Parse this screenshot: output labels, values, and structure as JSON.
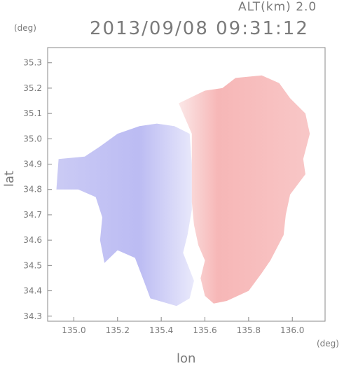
{
  "header": {
    "altitude_label": "ALT(km) 2.0",
    "datetime": "2013/09/08 09:31:12"
  },
  "axes": {
    "x_unit": "(deg)",
    "y_unit": "(deg)",
    "x_label": "lon",
    "y_label": "lat"
  },
  "chart_data": {
    "type": "heatmap",
    "title": "2013/09/08 09:31:12",
    "xlabel": "lon",
    "ylabel": "lat",
    "xlim": [
      134.88,
      136.15
    ],
    "ylim": [
      34.28,
      35.36
    ],
    "x_ticks": [
      "135.0",
      "135.2",
      "135.4",
      "135.6",
      "135.8",
      "136.0"
    ],
    "y_ticks": [
      "34.3",
      "34.4",
      "34.5",
      "34.6",
      "34.7",
      "34.8",
      "34.9",
      "35.0",
      "35.1",
      "35.2",
      "35.3"
    ],
    "colors": {
      "negative": "#b8b8f4",
      "positive": "#f4a8a8",
      "zero": "#ffffff"
    },
    "regions": [
      {
        "sign": "negative",
        "polygon": [
          [
            134.93,
            34.92
          ],
          [
            135.05,
            34.93
          ],
          [
            135.12,
            34.97
          ],
          [
            135.2,
            35.02
          ],
          [
            135.3,
            35.05
          ],
          [
            135.38,
            35.06
          ],
          [
            135.46,
            35.05
          ],
          [
            135.53,
            35.02
          ],
          [
            135.54,
            34.9
          ],
          [
            135.54,
            34.72
          ],
          [
            135.52,
            34.62
          ],
          [
            135.5,
            34.55
          ],
          [
            135.55,
            34.44
          ],
          [
            135.53,
            34.37
          ],
          [
            135.47,
            34.34
          ],
          [
            135.35,
            34.37
          ],
          [
            135.32,
            34.44
          ],
          [
            135.28,
            34.53
          ],
          [
            135.2,
            34.56
          ],
          [
            135.14,
            34.51
          ],
          [
            135.12,
            34.6
          ],
          [
            135.13,
            34.69
          ],
          [
            135.1,
            34.77
          ],
          [
            135.02,
            34.8
          ],
          [
            134.92,
            34.8
          ]
        ]
      },
      {
        "sign": "positive",
        "polygon": [
          [
            135.48,
            35.14
          ],
          [
            135.6,
            35.19
          ],
          [
            135.68,
            35.2
          ],
          [
            135.74,
            35.24
          ],
          [
            135.86,
            35.25
          ],
          [
            135.94,
            35.22
          ],
          [
            135.99,
            35.16
          ],
          [
            136.06,
            35.1
          ],
          [
            136.08,
            35.02
          ],
          [
            136.05,
            34.92
          ],
          [
            136.06,
            34.86
          ],
          [
            135.99,
            34.78
          ],
          [
            135.97,
            34.7
          ],
          [
            135.96,
            34.62
          ],
          [
            135.9,
            34.52
          ],
          [
            135.86,
            34.47
          ],
          [
            135.8,
            34.4
          ],
          [
            135.7,
            34.36
          ],
          [
            135.64,
            34.35
          ],
          [
            135.6,
            34.38
          ],
          [
            135.58,
            34.45
          ],
          [
            135.6,
            34.52
          ],
          [
            135.57,
            34.58
          ],
          [
            135.55,
            34.66
          ],
          [
            135.54,
            34.75
          ],
          [
            135.54,
            34.9
          ],
          [
            135.54,
            35.02
          ],
          [
            135.51,
            35.08
          ]
        ]
      }
    ]
  }
}
